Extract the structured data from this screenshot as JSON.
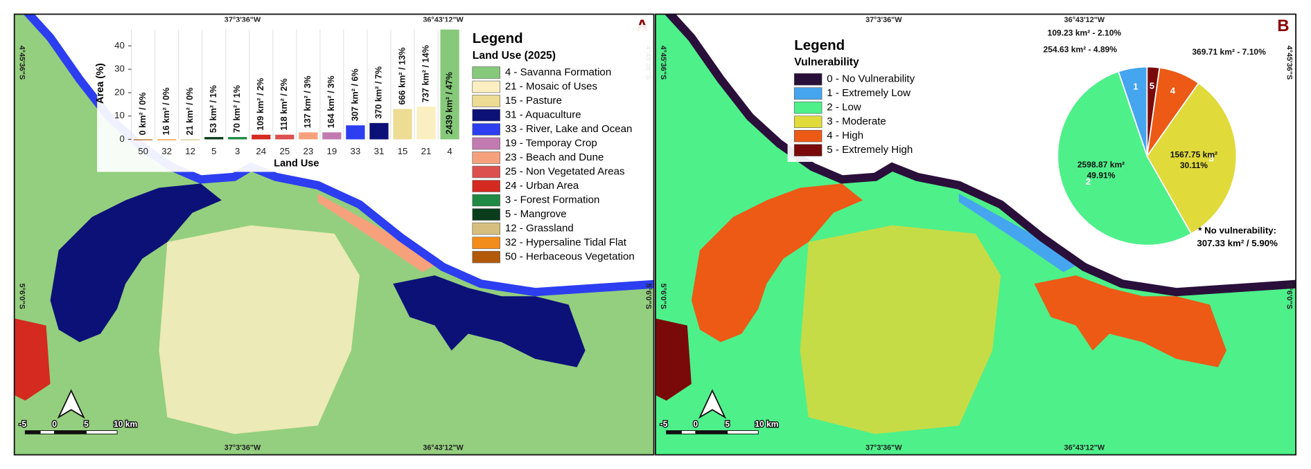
{
  "panels": [
    {
      "letter": "A",
      "coords": {
        "lon": [
          "37°3'36\"W",
          "36°43'12\"W"
        ],
        "lat": [
          "4°45'36\"S",
          "5°6'0\"S"
        ]
      },
      "scale": [
        "-5",
        "0",
        "5",
        "10 km"
      ],
      "legend": {
        "title": "Legend",
        "subtitle": "Land Use (2025)",
        "items": [
          {
            "label": "4 - Savanna Formation",
            "color": "#86c97a"
          },
          {
            "label": "21 - Mosaic of Uses",
            "color": "#fbeec0"
          },
          {
            "label": "15 - Pasture",
            "color": "#ecdc94"
          },
          {
            "label": "31 - Aquaculture",
            "color": "#0c1178"
          },
          {
            "label": "33 - River, Lake and Ocean",
            "color": "#2c3ef0"
          },
          {
            "label": "19 - Temporay Crop",
            "color": "#c27bb0"
          },
          {
            "label": "23 - Beach and Dune",
            "color": "#f6a17c"
          },
          {
            "label": "25 - Non Vegetated Areas",
            "color": "#dd5050"
          },
          {
            "label": "24 - Urban Area",
            "color": "#d42a20"
          },
          {
            "label": "3 - Forest Formation",
            "color": "#1f8a44"
          },
          {
            "label": "5 - Mangrove",
            "color": "#0b3d1c"
          },
          {
            "label": "12 - Grassland",
            "color": "#d6bf7e"
          },
          {
            "label": "32 - Hypersaline Tidal Flat",
            "color": "#f28c1a"
          },
          {
            "label": "50 - Herbaceous Vegetation",
            "color": "#b35a0a"
          }
        ]
      }
    },
    {
      "letter": "B",
      "coords": {
        "lon": [
          "37°3'36\"W",
          "36°43'12\"W"
        ],
        "lat": [
          "4°45'36\"S",
          "5°6'0\"S"
        ]
      },
      "scale": [
        "-5",
        "0",
        "5",
        "10 km"
      ],
      "legend": {
        "title": "Legend",
        "subtitle": "Vulnerability",
        "items": [
          {
            "label": "0 - No Vulnerability",
            "color": "#2a0f3a"
          },
          {
            "label": "1 - Extremely Low",
            "color": "#45a5ef"
          },
          {
            "label": "2 - Low",
            "color": "#4ef08a"
          },
          {
            "label": "3 - Moderate",
            "color": "#e0da3a"
          },
          {
            "label": "4 - High",
            "color": "#ec5a16"
          },
          {
            "label": "5 - Extremely High",
            "color": "#7a0a0a"
          }
        ]
      }
    }
  ],
  "chart_data": [
    {
      "type": "bar",
      "x_label": "Land Use",
      "y_label": "Area (%)",
      "categories": [
        "50",
        "32",
        "12",
        "5",
        "3",
        "24",
        "25",
        "23",
        "19",
        "33",
        "31",
        "15",
        "21",
        "4"
      ],
      "values": [
        0,
        0,
        0,
        1,
        1,
        2,
        2,
        3,
        3,
        6,
        7,
        13,
        14,
        47
      ],
      "value_labels": [
        "0 km² / 0%",
        "16 km² / 0%",
        "21 km² / 0%",
        "53 km² / 1%",
        "70 km² / 1%",
        "109 km² / 2%",
        "118 km² / 2%",
        "137 km² / 3%",
        "164 km² / 3%",
        "307 km² / 6%",
        "370 km² / 7%",
        "666 km² / 13%",
        "737 km² / 14%",
        "2439 km² / 47%"
      ],
      "colors": [
        "#b35a0a",
        "#f28c1a",
        "#d6bf7e",
        "#0b3d1c",
        "#1f8a44",
        "#d42a20",
        "#dd5050",
        "#f6a17c",
        "#c27bb0",
        "#2c3ef0",
        "#0c1178",
        "#ecdc94",
        "#fbeec0",
        "#86c97a"
      ],
      "ylim": [
        0,
        47
      ],
      "yticks": [
        0,
        10,
        20,
        30,
        40
      ]
    },
    {
      "type": "pie",
      "categories": [
        "1",
        "2",
        "3",
        "4",
        "5"
      ],
      "values": [
        4.89,
        49.91,
        30.11,
        7.1,
        2.1
      ],
      "value_labels": [
        [
          "254.63 km² - 4.89%"
        ],
        [
          "2598.87 km²",
          "49.91%"
        ],
        [
          "1567.75 km²",
          "30.11%"
        ],
        [
          "369.71 km² -  7.10%"
        ],
        [
          "109.23 km² - 2.10%"
        ]
      ],
      "colors": [
        "#45a5ef",
        "#4ef08a",
        "#e0da3a",
        "#ec5a16",
        "#7a0a0a"
      ],
      "note": [
        "* No vulnerability:",
        "307.33 km² / 5.90%"
      ]
    }
  ]
}
